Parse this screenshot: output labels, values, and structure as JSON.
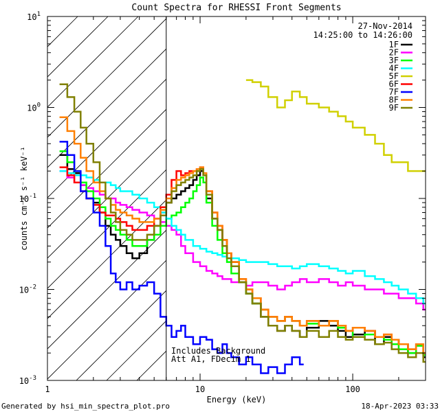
{
  "chart_data": {
    "type": "line",
    "title": "Count Spectra for RHESSI Front Segments",
    "xlabel": "Energy (keV)",
    "ylabel": "counts cm⁻² s⁻¹ keV⁻¹",
    "x_scale": "log",
    "y_scale": "log",
    "xlim": [
      1,
      300
    ],
    "ylim": [
      0.001,
      10
    ],
    "x_ticks": [
      {
        "value": 1,
        "label": "1"
      },
      {
        "value": 10,
        "label": "10"
      },
      {
        "value": 100,
        "label": "100"
      }
    ],
    "y_ticks": [
      {
        "value": 0.001,
        "base": "10",
        "exp": "-3"
      },
      {
        "value": 0.01,
        "base": "10",
        "exp": "-2"
      },
      {
        "value": 0.1,
        "base": "10",
        "exp": "-1"
      },
      {
        "value": 1,
        "base": "10",
        "exp": "0"
      },
      {
        "value": 10,
        "base": "10",
        "exp": "1"
      }
    ],
    "date": "27-Nov-2014",
    "time_range": "14:25:00 to 14:26:00",
    "excluded_region_max_keV": 6,
    "annotation": [
      "Includes Background",
      "Att A1, FDecim 1"
    ],
    "legend_position": "top-right",
    "series": [
      {
        "name": "1F",
        "color": "#000000",
        "x": [
          1.2,
          1.35,
          1.5,
          1.65,
          1.8,
          2.0,
          2.2,
          2.4,
          2.6,
          2.8,
          3.0,
          3.3,
          3.6,
          4.0,
          4.5,
          5.0,
          5.5,
          6.0,
          6.5,
          7.0,
          7.5,
          8.0,
          8.5,
          9.0,
          9.5,
          10.0,
          10.5,
          11.0,
          12.0,
          13.0,
          14.0,
          15.0,
          16.0,
          18.0,
          20.0,
          22.0,
          25.0,
          28.0,
          32.0,
          36.0,
          40.0,
          45.0,
          50.0,
          60.0,
          70.0,
          80.0,
          90.0,
          100.0,
          120.0,
          140.0,
          160.0,
          180.0,
          200.0,
          230.0,
          260.0,
          290.0
        ],
        "y": [
          0.3,
          0.21,
          0.19,
          0.14,
          0.1,
          0.09,
          0.07,
          0.05,
          0.04,
          0.035,
          0.03,
          0.025,
          0.022,
          0.025,
          0.035,
          0.05,
          0.07,
          0.09,
          0.1,
          0.11,
          0.12,
          0.13,
          0.14,
          0.16,
          0.18,
          0.2,
          0.18,
          0.1,
          0.06,
          0.045,
          0.035,
          0.025,
          0.02,
          0.012,
          0.009,
          0.007,
          0.005,
          0.004,
          0.0035,
          0.004,
          0.0035,
          0.003,
          0.0038,
          0.0045,
          0.004,
          0.0035,
          0.003,
          0.0032,
          0.0035,
          0.0025,
          0.003,
          0.0028,
          0.0025,
          0.002,
          0.0025,
          0.0018
        ]
      },
      {
        "name": "2F",
        "color": "#ff00ff",
        "x": [
          1.2,
          1.35,
          1.5,
          1.65,
          1.8,
          2.0,
          2.2,
          2.4,
          2.6,
          2.8,
          3.0,
          3.3,
          3.6,
          4.0,
          4.5,
          5.0,
          5.5,
          6.0,
          6.5,
          7.0,
          7.5,
          8.0,
          9.0,
          10.0,
          11.0,
          12.0,
          13.0,
          14.0,
          15.0,
          16.0,
          18.0,
          20.0,
          22.0,
          25.0,
          28.0,
          32.0,
          36.0,
          40.0,
          45.0,
          50.0,
          60.0,
          70.0,
          80.0,
          90.0,
          100.0,
          120.0,
          140.0,
          160.0,
          180.0,
          200.0,
          230.0,
          260.0,
          290.0
        ],
        "y": [
          0.2,
          0.17,
          0.15,
          0.14,
          0.13,
          0.12,
          0.11,
          0.1,
          0.1,
          0.09,
          0.085,
          0.08,
          0.075,
          0.07,
          0.065,
          0.06,
          0.055,
          0.05,
          0.045,
          0.04,
          0.03,
          0.025,
          0.02,
          0.018,
          0.016,
          0.015,
          0.014,
          0.013,
          0.013,
          0.012,
          0.012,
          0.011,
          0.012,
          0.012,
          0.011,
          0.01,
          0.011,
          0.012,
          0.013,
          0.012,
          0.013,
          0.012,
          0.011,
          0.012,
          0.011,
          0.01,
          0.01,
          0.009,
          0.009,
          0.008,
          0.008,
          0.007,
          0.006
        ]
      },
      {
        "name": "3F",
        "color": "#00ff00",
        "x": [
          1.2,
          1.35,
          1.5,
          1.65,
          1.8,
          2.0,
          2.2,
          2.4,
          2.6,
          2.8,
          3.0,
          3.3,
          3.6,
          4.0,
          4.5,
          5.0,
          5.5,
          6.0,
          6.5,
          7.0,
          7.5,
          8.0,
          8.5,
          9.0,
          9.5,
          10.0,
          10.5,
          11.0,
          12.0,
          13.0,
          14.0,
          15.0,
          16.0,
          18.0,
          20.0,
          22.0,
          25.0,
          28.0,
          32.0,
          36.0,
          40.0,
          45.0,
          50.0,
          60.0,
          70.0,
          80.0,
          90.0,
          100.0,
          120.0,
          140.0,
          160.0,
          180.0,
          200.0,
          230.0,
          260.0,
          290.0
        ],
        "y": [
          0.33,
          0.25,
          0.2,
          0.15,
          0.12,
          0.1,
          0.08,
          0.06,
          0.05,
          0.045,
          0.04,
          0.035,
          0.03,
          0.03,
          0.035,
          0.04,
          0.05,
          0.06,
          0.065,
          0.07,
          0.08,
          0.09,
          0.1,
          0.12,
          0.14,
          0.17,
          0.15,
          0.09,
          0.05,
          0.035,
          0.025,
          0.02,
          0.015,
          0.012,
          0.009,
          0.007,
          0.006,
          0.005,
          0.0045,
          0.005,
          0.0045,
          0.004,
          0.0042,
          0.004,
          0.0045,
          0.0038,
          0.0035,
          0.003,
          0.0032,
          0.003,
          0.0028,
          0.0025,
          0.0022,
          0.002,
          0.0024,
          0.0019
        ]
      },
      {
        "name": "4F",
        "color": "#00ffff",
        "x": [
          1.2,
          1.35,
          1.5,
          1.65,
          1.8,
          2.0,
          2.2,
          2.4,
          2.6,
          2.8,
          3.0,
          3.3,
          3.6,
          4.0,
          4.5,
          5.0,
          5.5,
          6.0,
          6.5,
          7.0,
          7.5,
          8.0,
          9.0,
          10.0,
          11.0,
          12.0,
          13.0,
          14.0,
          15.0,
          16.0,
          18.0,
          20.0,
          22.0,
          25.0,
          28.0,
          32.0,
          36.0,
          40.0,
          45.0,
          50.0,
          60.0,
          70.0,
          80.0,
          90.0,
          100.0,
          120.0,
          140.0,
          160.0,
          180.0,
          200.0,
          230.0,
          260.0,
          290.0
        ],
        "y": [
          0.2,
          0.19,
          0.18,
          0.18,
          0.17,
          0.16,
          0.15,
          0.15,
          0.14,
          0.13,
          0.12,
          0.12,
          0.11,
          0.1,
          0.09,
          0.08,
          0.07,
          0.06,
          0.05,
          0.045,
          0.04,
          0.035,
          0.03,
          0.028,
          0.026,
          0.025,
          0.024,
          0.023,
          0.022,
          0.022,
          0.021,
          0.02,
          0.02,
          0.02,
          0.019,
          0.018,
          0.018,
          0.017,
          0.018,
          0.019,
          0.018,
          0.017,
          0.016,
          0.015,
          0.016,
          0.014,
          0.013,
          0.012,
          0.011,
          0.01,
          0.009,
          0.008,
          0.007
        ]
      },
      {
        "name": "5F",
        "color": "#d0d000",
        "x": [
          20.0,
          22.0,
          25.0,
          28.0,
          32.0,
          36.0,
          40.0,
          45.0,
          50.0,
          60.0,
          70.0,
          80.0,
          90.0,
          100.0,
          120.0,
          140.0,
          160.0,
          180.0,
          200.0,
          230.0,
          260.0,
          290.0
        ],
        "y": [
          2.0,
          1.9,
          1.7,
          1.3,
          1.0,
          1.2,
          1.5,
          1.3,
          1.1,
          1.0,
          0.9,
          0.8,
          0.7,
          0.6,
          0.5,
          0.4,
          0.3,
          0.25,
          0.25,
          0.2,
          0.2,
          0.2
        ]
      },
      {
        "name": "6F",
        "color": "#ff0000",
        "x": [
          1.2,
          1.35,
          1.5,
          1.65,
          1.8,
          2.0,
          2.2,
          2.4,
          2.6,
          2.8,
          3.0,
          3.3,
          3.6,
          4.0,
          4.5,
          5.0,
          5.5,
          6.0,
          6.5,
          7.0,
          7.5,
          8.0,
          8.5,
          9.0,
          9.5,
          10.0,
          10.5,
          11.0,
          12.0,
          13.0,
          14.0,
          15.0,
          16.0,
          18.0,
          20.0,
          22.0,
          25.0,
          28.0,
          32.0,
          36.0,
          40.0,
          45.0,
          50.0,
          60.0,
          70.0,
          80.0,
          90.0,
          100.0,
          120.0,
          140.0,
          160.0,
          180.0,
          200.0,
          230.0,
          260.0,
          290.0
        ],
        "y": [
          0.22,
          0.18,
          0.15,
          0.12,
          0.1,
          0.085,
          0.07,
          0.065,
          0.065,
          0.06,
          0.055,
          0.05,
          0.045,
          0.045,
          0.05,
          0.06,
          0.08,
          0.11,
          0.16,
          0.2,
          0.18,
          0.19,
          0.2,
          0.2,
          0.21,
          0.22,
          0.18,
          0.12,
          0.07,
          0.05,
          0.035,
          0.025,
          0.02,
          0.013,
          0.01,
          0.008,
          0.006,
          0.005,
          0.0045,
          0.005,
          0.0045,
          0.004,
          0.0045,
          0.004,
          0.0045,
          0.004,
          0.0035,
          0.0038,
          0.0035,
          0.003,
          0.0032,
          0.0028,
          0.0025,
          0.0022,
          0.0025,
          0.002
        ]
      },
      {
        "name": "7F",
        "color": "#0000ff",
        "x": [
          1.2,
          1.35,
          1.5,
          1.65,
          1.8,
          2.0,
          2.2,
          2.4,
          2.6,
          2.8,
          3.0,
          3.3,
          3.6,
          4.0,
          4.5,
          5.0,
          5.5,
          6.0,
          6.5,
          7.0,
          7.5,
          8.0,
          9.0,
          10.0,
          11.0,
          12.0,
          13.0,
          14.0,
          15.0,
          16.0,
          18.0,
          20.0,
          22.0,
          25.0,
          28.0,
          32.0,
          36.0,
          40.0,
          45.0
        ],
        "y": [
          0.42,
          0.3,
          0.2,
          0.12,
          0.1,
          0.07,
          0.05,
          0.03,
          0.015,
          0.012,
          0.01,
          0.012,
          0.01,
          0.011,
          0.012,
          0.009,
          0.005,
          0.004,
          0.003,
          0.0035,
          0.004,
          0.003,
          0.0025,
          0.003,
          0.0028,
          0.0022,
          0.002,
          0.0025,
          0.002,
          0.0018,
          0.0015,
          0.0018,
          0.0015,
          0.0012,
          0.0014,
          0.0012,
          0.0015,
          0.0018,
          0.0015
        ]
      },
      {
        "name": "8F",
        "color": "#ff8000",
        "x": [
          1.2,
          1.35,
          1.5,
          1.65,
          1.8,
          2.0,
          2.2,
          2.4,
          2.6,
          2.8,
          3.0,
          3.3,
          3.6,
          4.0,
          4.5,
          5.0,
          5.5,
          6.0,
          6.5,
          7.0,
          7.5,
          8.0,
          8.5,
          9.0,
          9.5,
          10.0,
          10.5,
          11.0,
          12.0,
          13.0,
          14.0,
          15.0,
          16.0,
          18.0,
          20.0,
          22.0,
          25.0,
          28.0,
          32.0,
          36.0,
          40.0,
          45.0,
          50.0,
          60.0,
          70.0,
          80.0,
          90.0,
          100.0,
          120.0,
          140.0,
          160.0,
          180.0,
          200.0,
          230.0,
          260.0,
          290.0
        ],
        "y": [
          0.78,
          0.55,
          0.4,
          0.28,
          0.2,
          0.15,
          0.12,
          0.1,
          0.085,
          0.075,
          0.07,
          0.065,
          0.06,
          0.055,
          0.055,
          0.06,
          0.075,
          0.1,
          0.13,
          0.16,
          0.17,
          0.18,
          0.19,
          0.2,
          0.21,
          0.22,
          0.19,
          0.12,
          0.07,
          0.05,
          0.035,
          0.025,
          0.02,
          0.013,
          0.01,
          0.008,
          0.006,
          0.005,
          0.0045,
          0.005,
          0.0045,
          0.004,
          0.0045,
          0.004,
          0.0045,
          0.004,
          0.0035,
          0.0038,
          0.0035,
          0.003,
          0.0032,
          0.0028,
          0.0025,
          0.0022,
          0.0025,
          0.002
        ]
      },
      {
        "name": "9F",
        "color": "#808000",
        "x": [
          1.2,
          1.35,
          1.5,
          1.65,
          1.8,
          2.0,
          2.2,
          2.4,
          2.6,
          2.8,
          3.0,
          3.3,
          3.6,
          4.0,
          4.5,
          5.0,
          5.5,
          6.0,
          6.5,
          7.0,
          7.5,
          8.0,
          8.5,
          9.0,
          9.5,
          10.0,
          10.5,
          11.0,
          12.0,
          13.0,
          14.0,
          15.0,
          16.0,
          18.0,
          20.0,
          22.0,
          25.0,
          28.0,
          32.0,
          36.0,
          40.0,
          45.0,
          50.0,
          60.0,
          70.0,
          80.0,
          90.0,
          100.0,
          120.0,
          140.0,
          160.0,
          180.0,
          200.0,
          230.0,
          260.0,
          290.0
        ],
        "y": [
          1.8,
          1.3,
          0.9,
          0.6,
          0.4,
          0.25,
          0.15,
          0.1,
          0.07,
          0.055,
          0.045,
          0.04,
          0.035,
          0.035,
          0.04,
          0.05,
          0.065,
          0.09,
          0.12,
          0.14,
          0.15,
          0.16,
          0.17,
          0.18,
          0.2,
          0.21,
          0.18,
          0.11,
          0.06,
          0.045,
          0.03,
          0.022,
          0.018,
          0.012,
          0.009,
          0.007,
          0.005,
          0.004,
          0.0035,
          0.004,
          0.0035,
          0.003,
          0.0035,
          0.003,
          0.0035,
          0.003,
          0.0028,
          0.003,
          0.0028,
          0.0025,
          0.0026,
          0.0022,
          0.002,
          0.0018,
          0.002,
          0.0016
        ]
      }
    ]
  },
  "footer": {
    "generated_by": "Generated by hsi_min_spectra_plot.pro",
    "timestamp": "18-Apr-2023 03:33"
  }
}
